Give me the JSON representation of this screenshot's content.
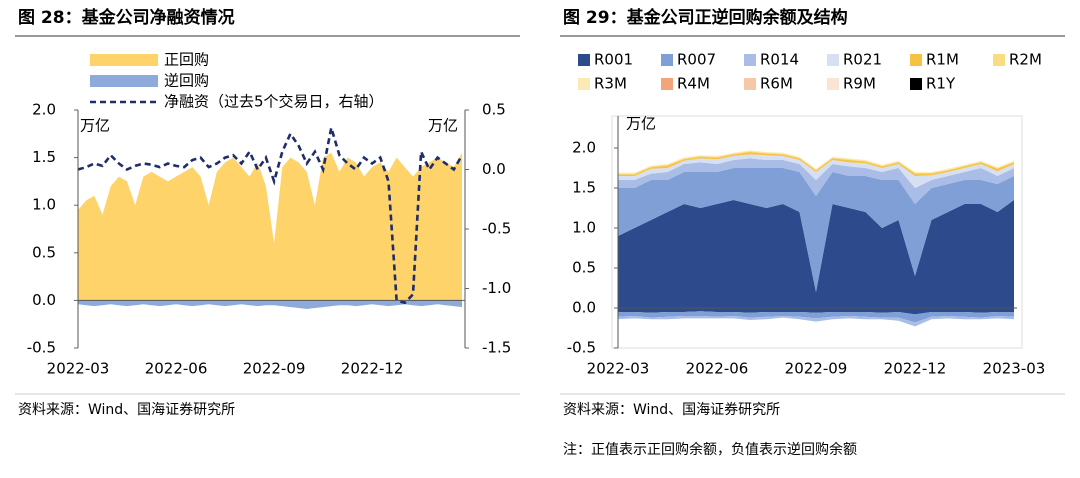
{
  "chart_data": [
    {
      "type": "area",
      "title": "图 28：基金公司净融资情况",
      "unit": "万亿",
      "unit2": "万亿",
      "categories": [
        "2022-03",
        null,
        null,
        null,
        null,
        null,
        null,
        null,
        null,
        null,
        null,
        null,
        "2022-06",
        null,
        null,
        null,
        null,
        null,
        null,
        null,
        null,
        null,
        null,
        null,
        "2022-09",
        null,
        null,
        null,
        null,
        null,
        null,
        null,
        null,
        null,
        null,
        null,
        "2022-12",
        null,
        null,
        null,
        null,
        null,
        null,
        null,
        null,
        null,
        null,
        null
      ],
      "ylim": [
        -0.5,
        2.0
      ],
      "yticks": [
        -0.5,
        {
          "value": 0,
          "label": "0.0"
        },
        0.5,
        {
          "value": 1,
          "label": "1.0"
        },
        1.5,
        {
          "value": 2,
          "label": "2.0"
        }
      ],
      "y2lim": [
        -1.5,
        0.5
      ],
      "y2ticks": [
        -1.5,
        {
          "value": -1,
          "label": "-1.0"
        },
        -0.5,
        {
          "value": 0,
          "label": "0.0"
        },
        0.5
      ],
      "series": [
        {
          "name": "正回购",
          "color": "#fdd36a",
          "kind": "area",
          "values": [
            0.95,
            1.05,
            1.1,
            0.9,
            1.2,
            1.3,
            1.25,
            1.0,
            1.3,
            1.35,
            1.3,
            1.25,
            1.3,
            1.35,
            1.4,
            1.3,
            1.0,
            1.35,
            1.45,
            1.5,
            1.4,
            1.3,
            1.45,
            1.2,
            0.6,
            1.4,
            1.5,
            1.45,
            1.35,
            1.0,
            1.5,
            1.55,
            1.35,
            1.5,
            1.45,
            1.3,
            1.4,
            1.45,
            1.35,
            1.5,
            1.4,
            1.3,
            1.4,
            1.45,
            1.5,
            1.45,
            1.4,
            1.55
          ]
        },
        {
          "name": "逆回购",
          "color": "#8eaadb",
          "kind": "area",
          "values": [
            -0.04,
            -0.05,
            -0.06,
            -0.05,
            -0.04,
            -0.05,
            -0.06,
            -0.05,
            -0.04,
            -0.05,
            -0.06,
            -0.05,
            -0.04,
            -0.05,
            -0.06,
            -0.05,
            -0.04,
            -0.05,
            -0.06,
            -0.05,
            -0.04,
            -0.05,
            -0.06,
            -0.05,
            -0.05,
            -0.06,
            -0.07,
            -0.08,
            -0.09,
            -0.08,
            -0.07,
            -0.06,
            -0.05,
            -0.05,
            -0.06,
            -0.05,
            -0.04,
            -0.05,
            -0.06,
            -0.05,
            -0.04,
            -0.05,
            -0.06,
            -0.05,
            -0.04,
            -0.05,
            -0.06,
            -0.07
          ]
        },
        {
          "name": "净融资（过去5个交易日，右轴）",
          "color": "#1f2d6b",
          "kind": "line",
          "axis": "y2",
          "values": [
            0.0,
            0.02,
            0.05,
            0.03,
            0.12,
            0.05,
            0.0,
            0.03,
            0.05,
            0.04,
            0.02,
            0.05,
            0.03,
            0.02,
            0.08,
            0.1,
            0.02,
            0.05,
            0.1,
            0.12,
            0.05,
            0.15,
            0.0,
            0.1,
            -0.1,
            0.15,
            0.3,
            0.2,
            0.05,
            0.15,
            0.0,
            0.35,
            0.12,
            0.05,
            0.0,
            0.1,
            0.05,
            0.1,
            -0.1,
            -1.1,
            -1.12,
            -1.05,
            0.15,
            0.0,
            0.1,
            0.05,
            0.0,
            0.12
          ]
        }
      ],
      "source": "资料来源：Wind、国海证券研究所"
    },
    {
      "type": "stacked_area",
      "title": "图 29：基金公司正逆回购余额及结构",
      "unit": "万亿",
      "categories": [
        "2022-03",
        null,
        null,
        null,
        null,
        null,
        "2022-06",
        null,
        null,
        null,
        null,
        null,
        "2022-09",
        null,
        null,
        null,
        null,
        null,
        "2022-12",
        null,
        null,
        null,
        null,
        null,
        "2023-03"
      ],
      "ylim": [
        -0.5,
        2.4
      ],
      "yticks": [
        -0.5,
        {
          "value": 0,
          "label": "0.0"
        },
        0.5,
        {
          "value": 1,
          "label": "1.0"
        },
        1.5,
        {
          "value": 2,
          "label": "2.0"
        }
      ],
      "series": [
        {
          "name": "R001",
          "color": "#2c4a8c",
          "values": [
            0.9,
            1.0,
            1.1,
            1.2,
            1.3,
            1.25,
            1.3,
            1.35,
            1.3,
            1.25,
            1.3,
            1.2,
            0.2,
            1.3,
            1.25,
            1.2,
            1.0,
            1.1,
            0.4,
            1.1,
            1.2,
            1.3,
            1.3,
            1.2,
            1.35
          ],
          "reverse_values": [
            -0.05,
            -0.05,
            -0.06,
            -0.05,
            -0.05,
            -0.04,
            -0.05,
            -0.05,
            -0.06,
            -0.05,
            -0.05,
            -0.05,
            -0.06,
            -0.05,
            -0.05,
            -0.05,
            -0.06,
            -0.05,
            -0.08,
            -0.05,
            -0.05,
            -0.05,
            -0.06,
            -0.05,
            -0.05
          ]
        },
        {
          "name": "R007",
          "color": "#7f9fd6",
          "values": [
            0.6,
            0.5,
            0.5,
            0.4,
            0.4,
            0.45,
            0.4,
            0.4,
            0.45,
            0.5,
            0.45,
            0.5,
            1.2,
            0.4,
            0.4,
            0.45,
            0.6,
            0.5,
            0.9,
            0.4,
            0.35,
            0.3,
            0.3,
            0.35,
            0.3
          ],
          "reverse_values": [
            -0.06,
            -0.05,
            -0.06,
            -0.06,
            -0.05,
            -0.06,
            -0.06,
            -0.05,
            -0.06,
            -0.06,
            -0.05,
            -0.06,
            -0.07,
            -0.06,
            -0.05,
            -0.06,
            -0.06,
            -0.07,
            -0.1,
            -0.06,
            -0.05,
            -0.06,
            -0.06,
            -0.05,
            -0.06
          ]
        },
        {
          "name": "R014",
          "color": "#a9bde6",
          "values": [
            0.1,
            0.1,
            0.08,
            0.1,
            0.1,
            0.12,
            0.1,
            0.1,
            0.12,
            0.1,
            0.1,
            0.1,
            0.2,
            0.1,
            0.12,
            0.1,
            0.1,
            0.15,
            0.2,
            0.1,
            0.1,
            0.1,
            0.15,
            0.1,
            0.1
          ],
          "reverse_values": [
            -0.03,
            -0.03,
            -0.02,
            -0.03,
            -0.03,
            -0.03,
            -0.02,
            -0.03,
            -0.03,
            -0.03,
            -0.02,
            -0.03,
            -0.04,
            -0.03,
            -0.03,
            -0.03,
            -0.02,
            -0.04,
            -0.05,
            -0.03,
            -0.03,
            -0.03,
            -0.02,
            -0.03,
            -0.03
          ]
        },
        {
          "name": "R021",
          "color": "#d6e0f2",
          "values": [
            0.05,
            0.05,
            0.06,
            0.05,
            0.04,
            0.05,
            0.06,
            0.05,
            0.05,
            0.06,
            0.05,
            0.05,
            0.1,
            0.05,
            0.05,
            0.06,
            0.05,
            0.05,
            0.15,
            0.06,
            0.05,
            0.05,
            0.05,
            0.06,
            0.05
          ]
        },
        {
          "name": "R1M",
          "color": "#f5c242",
          "values": [
            0.02,
            0.02,
            0.02,
            0.03,
            0.02,
            0.02,
            0.02,
            0.02,
            0.03,
            0.02,
            0.02,
            0.02,
            0.02,
            0.02,
            0.03,
            0.02,
            0.02,
            0.02,
            0.03,
            0.02,
            0.02,
            0.02,
            0.02,
            0.03,
            0.02
          ]
        },
        {
          "name": "R2M",
          "color": "#f9dc80",
          "values": [
            0.01,
            0.01,
            0.01,
            0.01,
            0.01,
            0.01,
            0.01,
            0.01,
            0.01,
            0.01,
            0.01,
            0.01,
            0.01,
            0.01,
            0.01,
            0.01,
            0.01,
            0.01,
            0.01,
            0.01,
            0.01,
            0.01,
            0.01,
            0.01,
            0.01
          ]
        },
        {
          "name": "R3M",
          "color": "#fbeab6",
          "values": [
            0.01,
            0.01,
            0.01,
            0.01,
            0.01,
            0.01,
            0.01,
            0.01,
            0.01,
            0.01,
            0.01,
            0.01,
            0.01,
            0.01,
            0.01,
            0.01,
            0.01,
            0.01,
            0.01,
            0.01,
            0.01,
            0.01,
            0.01,
            0.01,
            0.01
          ]
        },
        {
          "name": "R4M",
          "color": "#f2a57a",
          "values": [
            0,
            0,
            0,
            0,
            0,
            0,
            0,
            0,
            0,
            0,
            0,
            0,
            0,
            0,
            0,
            0,
            0,
            0,
            0,
            0,
            0,
            0,
            0,
            0,
            0
          ]
        },
        {
          "name": "R6M",
          "color": "#f5c8a8",
          "values": [
            0,
            0,
            0,
            0,
            0,
            0,
            0,
            0,
            0,
            0,
            0,
            0,
            0,
            0,
            0,
            0,
            0,
            0,
            0,
            0,
            0,
            0,
            0,
            0,
            0
          ]
        },
        {
          "name": "R9M",
          "color": "#fbe3d5",
          "values": [
            0,
            0,
            0,
            0,
            0,
            0,
            0,
            0,
            0,
            0,
            0,
            0,
            0,
            0,
            0,
            0,
            0,
            0,
            0,
            0,
            0,
            0,
            0,
            0,
            0
          ]
        },
        {
          "name": "R1Y",
          "color": "#000000",
          "values": [
            0,
            0,
            0,
            0,
            0,
            0,
            0,
            0,
            0,
            0,
            0,
            0,
            0,
            0,
            0,
            0,
            0,
            0,
            0,
            0,
            0,
            0,
            0,
            0,
            0
          ]
        }
      ],
      "source": "资料来源：Wind、国海证券研究所",
      "note": "注：正值表示正回购余额，负值表示逆回购余额"
    }
  ]
}
